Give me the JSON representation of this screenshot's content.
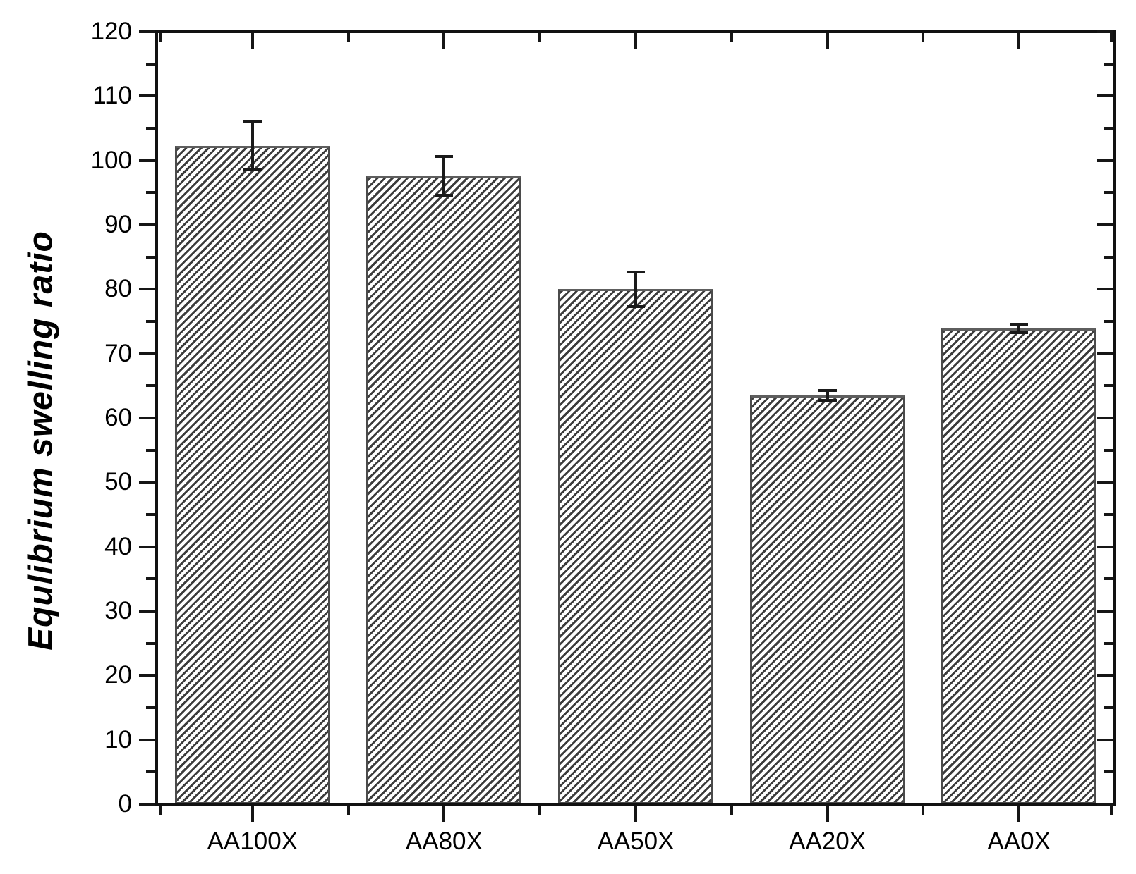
{
  "chart_data": {
    "type": "bar",
    "title": "",
    "xlabel": "",
    "ylabel": "Equlibrium swelling ratio",
    "categories": [
      "AA100X",
      "AA80X",
      "AA50X",
      "AA20X",
      "AA0X"
    ],
    "series": [
      {
        "name": "Equilibrium swelling ratio",
        "values": [
          102.3,
          97.6,
          80.0,
          63.5,
          73.9
        ],
        "errors": [
          3.8,
          3.0,
          2.7,
          0.8,
          0.7
        ]
      }
    ],
    "ylim": [
      0,
      120
    ],
    "yticks": [
      0,
      10,
      20,
      30,
      40,
      50,
      60,
      70,
      80,
      90,
      100,
      110,
      120
    ],
    "y_minor_step": 5,
    "grid": false,
    "legend_position": "none",
    "bar_style": {
      "hatch": "forward-diagonal",
      "fill_color": "#ffffff",
      "hatch_color": "#3c3c3c",
      "edge_color": "#4b4b4b"
    },
    "axis_color": "#111111",
    "error_bar_color": "#1a1a1a"
  }
}
